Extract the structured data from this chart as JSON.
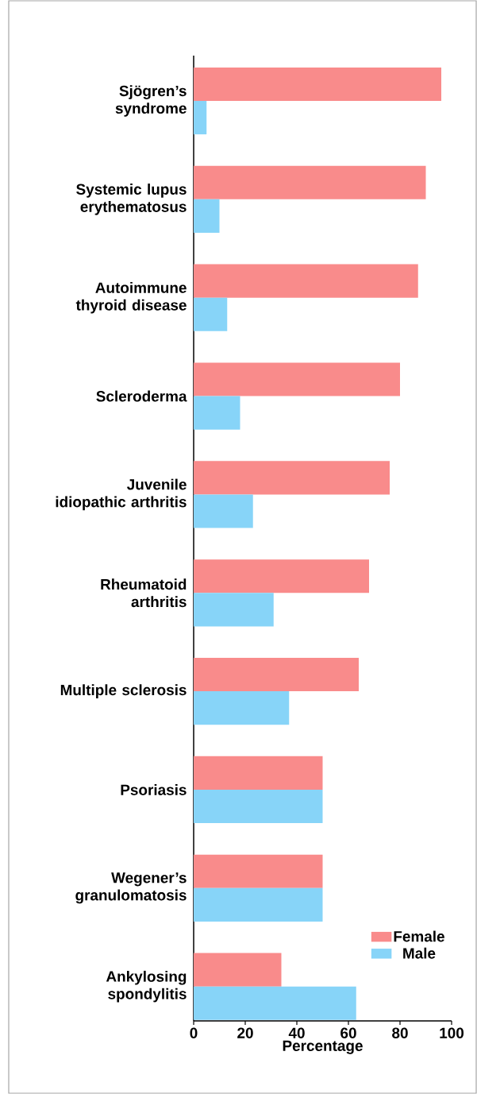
{
  "chart_data": {
    "type": "bar",
    "orientation": "horizontal",
    "xlabel": "Percentage",
    "categories": [
      "Sjögren’s syndrome",
      "Systemic lupus erythematosus",
      "Autoimmune thyroid disease",
      "Scleroderma",
      "Juvenile idiopathic arthritis",
      "Rheumatoid arthritis",
      "Multiple sclerosis",
      "Psoriasis",
      "Wegener’s granulomatosis",
      "Ankylosing spondylitis"
    ],
    "series": [
      {
        "name": "Female",
        "color": "#f98b8b",
        "values": [
          96,
          90,
          87,
          80,
          76,
          68,
          64,
          50,
          50,
          34
        ]
      },
      {
        "name": "Male",
        "color": "#87d4f8",
        "values": [
          5,
          10,
          13,
          18,
          23,
          31,
          37,
          50,
          50,
          63
        ]
      }
    ],
    "xlim": [
      0,
      100
    ],
    "xticks": [
      0,
      20,
      40,
      60,
      80,
      100
    ],
    "legend": "bottom right"
  }
}
